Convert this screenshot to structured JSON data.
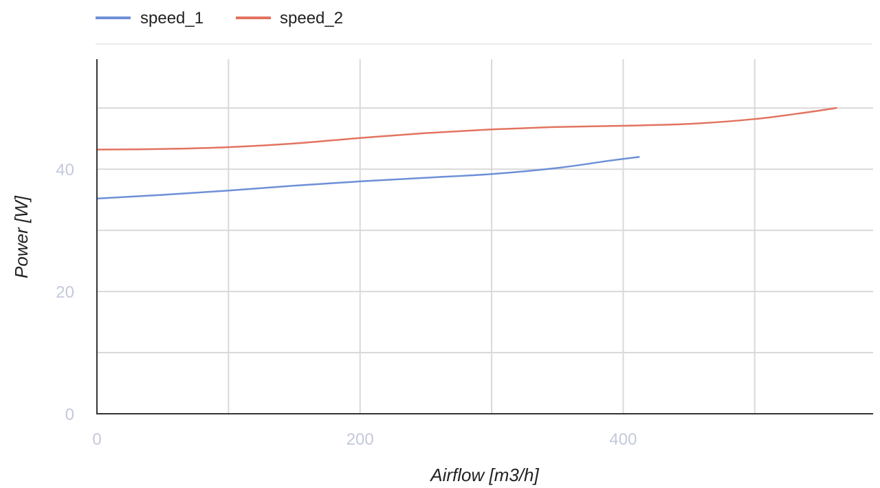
{
  "chart_data": {
    "type": "line",
    "xlabel": "Airflow [m3/h]",
    "ylabel": "Power [W]",
    "xlim": [
      0,
      590
    ],
    "ylim": [
      0,
      58
    ],
    "x_ticks": [
      0,
      200,
      400
    ],
    "x_minor_grid": [
      100,
      300,
      500
    ],
    "y_ticks": [
      0,
      20,
      40
    ],
    "y_minor_grid": [
      10,
      30,
      50
    ],
    "grid": true,
    "legend_position": "top-left",
    "series": [
      {
        "name": "speed_1",
        "color": "#6d8fd8",
        "points": [
          [
            0,
            35.2
          ],
          [
            50,
            35.8
          ],
          [
            100,
            36.5
          ],
          [
            150,
            37.3
          ],
          [
            200,
            38.0
          ],
          [
            250,
            38.6
          ],
          [
            300,
            39.2
          ],
          [
            350,
            40.2
          ],
          [
            390,
            41.4
          ],
          [
            412,
            42.0
          ]
        ]
      },
      {
        "name": "speed_2",
        "color": "#e2735f",
        "points": [
          [
            0,
            43.2
          ],
          [
            50,
            43.3
          ],
          [
            100,
            43.6
          ],
          [
            150,
            44.2
          ],
          [
            200,
            45.1
          ],
          [
            250,
            45.9
          ],
          [
            300,
            46.5
          ],
          [
            350,
            46.9
          ],
          [
            400,
            47.1
          ],
          [
            450,
            47.4
          ],
          [
            500,
            48.2
          ],
          [
            540,
            49.3
          ],
          [
            562,
            50.0
          ]
        ]
      }
    ]
  }
}
